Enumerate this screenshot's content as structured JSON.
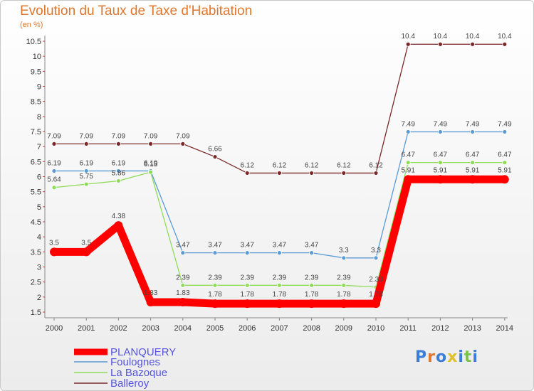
{
  "title": "Evolution du Taux de Taxe d'Habitation",
  "subtitle": "(en %)",
  "logo_text": "Proxiti",
  "chart_data": {
    "type": "line",
    "title": "Evolution du Taux de Taxe d'Habitation",
    "ylabel": "(en %)",
    "xlabel": "",
    "x": [
      "2000",
      "2001",
      "2002",
      "2003",
      "2004",
      "2005",
      "2006",
      "2007",
      "2008",
      "2009",
      "2010",
      "2011",
      "2012",
      "2013",
      "2014"
    ],
    "ylim": [
      1.5,
      10.5
    ],
    "yticks": [
      "1.5",
      "2",
      "2.5",
      "3",
      "3.5",
      "4",
      "4.5",
      "5",
      "5.5",
      "6",
      "6.5",
      "7",
      "7.5",
      "8",
      "8.5",
      "9",
      "9.5",
      "10",
      "10.5"
    ],
    "grid": false,
    "legend_position": "bottom-left",
    "series": [
      {
        "name": "PLANQUERY",
        "color": "#ff0000",
        "values": [
          3.5,
          3.5,
          4.38,
          1.83,
          1.83,
          1.78,
          1.78,
          1.78,
          1.78,
          1.78,
          1.78,
          5.91,
          5.91,
          5.91,
          5.91
        ],
        "labels": [
          "3.5",
          "3.5",
          "4.38",
          "1.83",
          "1.83",
          "1.78",
          "1.78",
          "1.78",
          "1.78",
          "1.78",
          "1.78",
          "5.91",
          "5.91",
          "5.91",
          "5.91"
        ]
      },
      {
        "name": "Foulognes",
        "color": "#5b9bd5",
        "values": [
          6.19,
          6.19,
          6.19,
          6.19,
          3.47,
          3.47,
          3.47,
          3.47,
          3.47,
          3.3,
          3.3,
          7.49,
          7.49,
          7.49,
          7.49
        ],
        "labels": [
          "6.19",
          "6.19",
          "6.19",
          "6.19",
          "3.47",
          "3.47",
          "3.47",
          "3.47",
          "3.47",
          "3.3",
          "3.3",
          "7.49",
          "7.49",
          "7.49",
          "7.49"
        ]
      },
      {
        "name": "La Bazoque",
        "color": "#8fdc5a",
        "values": [
          5.64,
          5.75,
          5.86,
          6.15,
          2.39,
          2.39,
          2.39,
          2.39,
          2.39,
          2.39,
          2.33,
          6.47,
          6.47,
          6.47,
          6.47
        ],
        "labels": [
          "5.64",
          "5.75",
          "5.86",
          "6.15",
          "2.39",
          "2.39",
          "2.39",
          "2.39",
          "2.39",
          "2.39",
          "2.33",
          "6.47",
          "6.47",
          "6.47",
          "6.47"
        ]
      },
      {
        "name": "Balleroy",
        "color": "#7a2a2a",
        "values": [
          7.09,
          7.09,
          7.09,
          7.09,
          7.09,
          6.66,
          6.12,
          6.12,
          6.12,
          6.12,
          6.12,
          10.4,
          10.4,
          10.4,
          10.4
        ],
        "labels": [
          "7.09",
          "7.09",
          "7.09",
          "7.09",
          "7.09",
          "6.66",
          "6.12",
          "6.12",
          "6.12",
          "6.12",
          "6.12",
          "10.4",
          "10.4",
          "10.4",
          "10.4"
        ]
      }
    ]
  }
}
